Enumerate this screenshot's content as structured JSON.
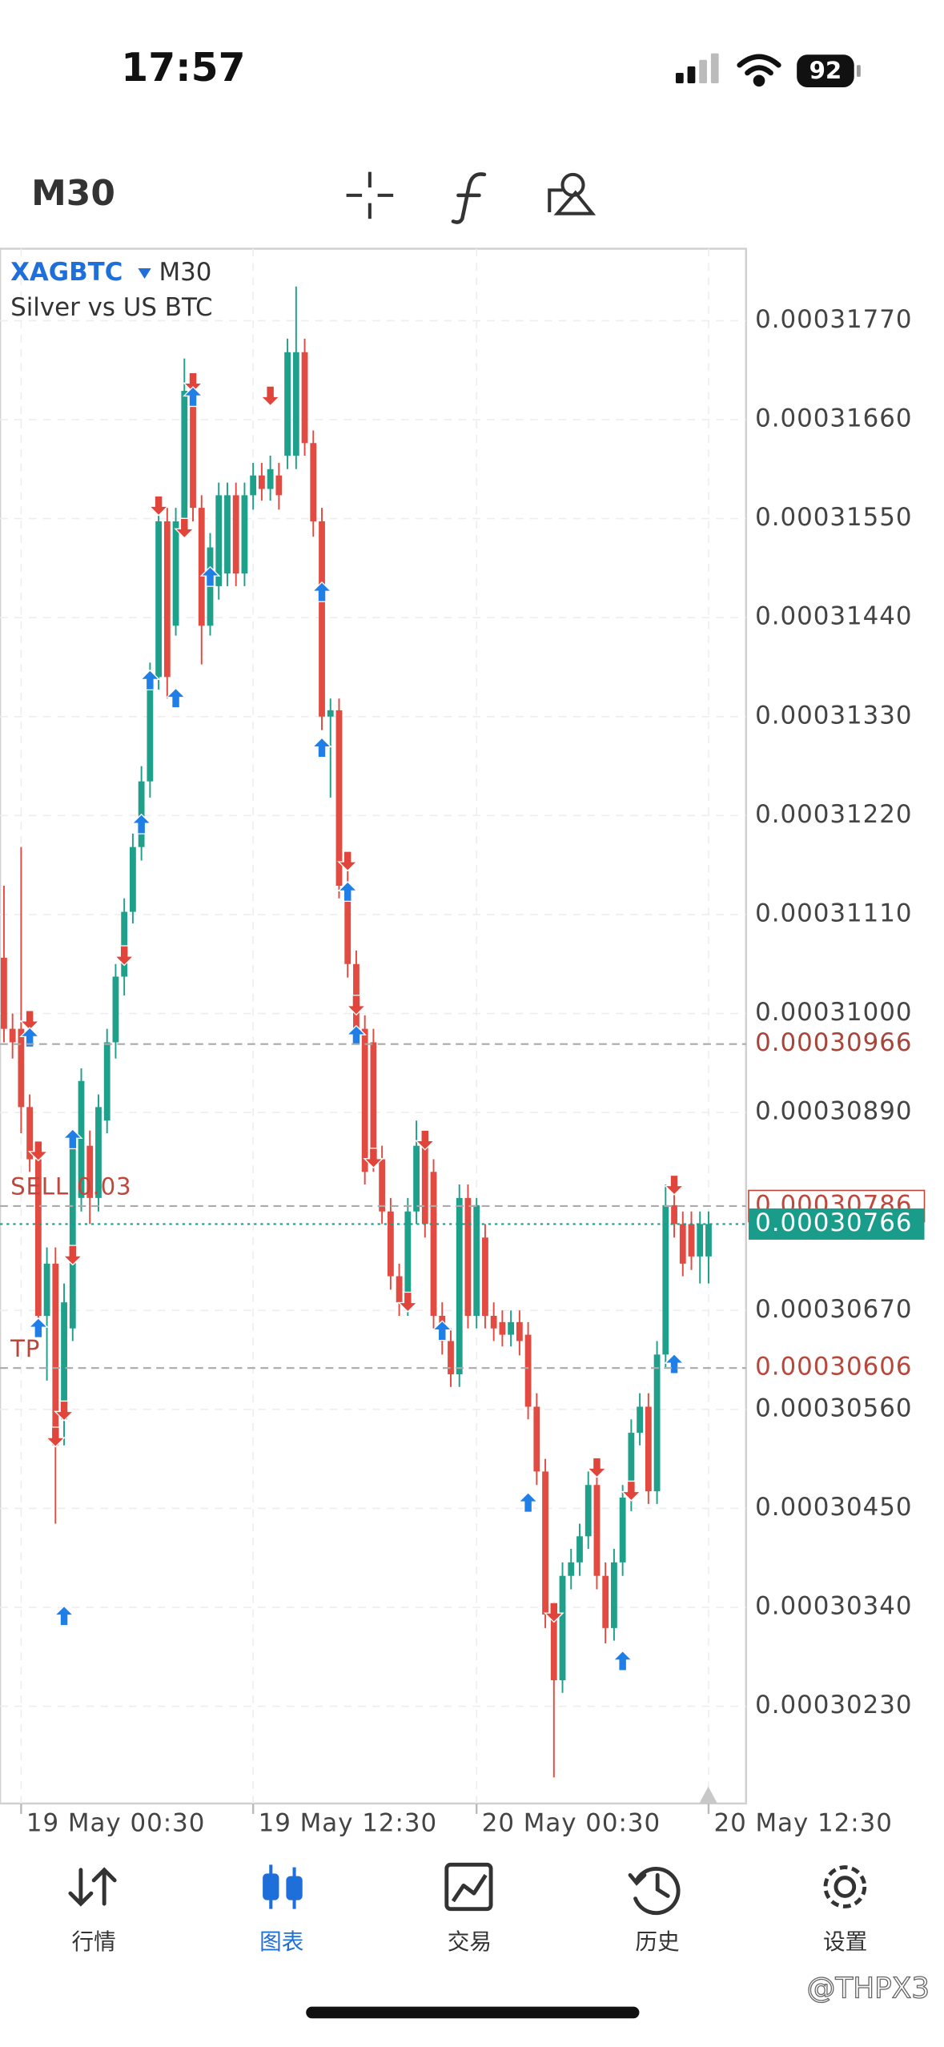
{
  "status_bar": {
    "time": "17:57",
    "battery": "92"
  },
  "toolbar": {
    "timeframe": "M30"
  },
  "chart_data": {
    "type": "candlestick",
    "symbol": "XAGBTC",
    "timeframe": "M30",
    "description": "Silver vs US BTC",
    "up_color": "#1fa08b",
    "down_color": "#e24b41",
    "open": [
      0.00031062,
      0.00030983,
      0.00030983,
      0.00030896,
      0.00030838,
      0.00030664,
      0.00030722,
      0.00030549,
      0.0003065,
      0.00030795,
      0.00030853,
      0.00030795,
      0.00030881,
      0.00030968,
      0.00031041,
      0.00031113,
      0.00031185,
      0.00031258,
      0.00031374,
      0.00031547,
      0.00031431,
      0.00031547,
      0.00031692,
      0.00031562,
      0.00031431,
      0.00031475,
      0.00031489,
      0.00031576,
      0.00031489,
      0.00031576,
      0.00031598,
      0.00031583,
      0.00031598,
      0.0003162,
      0.0003162,
      0.00031735,
      0.00031634,
      0.00031547,
      0.0003133,
      0.00031337,
      0.00031142,
      0.00031055,
      0.00030983,
      0.00030968,
      0.00030838,
      0.0003078,
      0.00030708,
      0.00030679,
      0.0003078,
      0.00030853,
      0.00030824,
      0.00030664,
      0.00030636,
      0.00030599,
      0.00030795,
      0.00030664,
      0.00030751,
      0.00030664,
      0.00030657,
      0.00030643,
      0.00030657,
      0.00030643,
      0.00030563,
      0.00030491,
      0.00030332,
      0.00030259,
      0.00030375,
      0.0003039,
      0.00030419,
      0.00030476,
      0.00030375,
      0.00030317,
      0.0003039,
      0.00030462,
      0.00030534,
      0.00030563,
      0.00030469,
      0.00030621,
      0.00030787,
      0.00030766,
      0.00030766,
      0.0003073,
      0.0003073
    ],
    "high": [
      0.00031142,
      0.00031,
      0.00031185,
      0.0003091,
      0.00030853,
      0.0003074,
      0.0003074,
      0.000307,
      0.0003087,
      0.00030939,
      0.0003087,
      0.0003091,
      0.00030983,
      0.00031055,
      0.00031128,
      0.000312,
      0.00031275,
      0.0003139,
      0.00031562,
      0.00031562,
      0.00031562,
      0.00031728,
      0.0003171,
      0.00031576,
      0.00031534,
      0.0003159,
      0.0003159,
      0.0003159,
      0.0003159,
      0.00031612,
      0.00031612,
      0.0003162,
      0.00031612,
      0.0003175,
      0.00031808,
      0.0003175,
      0.00031648,
      0.00031562,
      0.0003135,
      0.0003135,
      0.0003116,
      0.0003107,
      0.00030998,
      0.00030983,
      0.00030853,
      0.00030795,
      0.00030722,
      0.00030795,
      0.00030881,
      0.00030867,
      0.00030838,
      0.00030679,
      0.0003065,
      0.0003081,
      0.0003081,
      0.00030795,
      0.00030766,
      0.00030679,
      0.0003067,
      0.0003067,
      0.0003067,
      0.00030657,
      0.00030578,
      0.00030505,
      0.00030346,
      0.0003039,
      0.00030405,
      0.00030433,
      0.00030491,
      0.00030491,
      0.0003039,
      0.00030405,
      0.00030476,
      0.00030549,
      0.00030578,
      0.00030578,
      0.00030636,
      0.0003081,
      0.000308,
      0.0003078,
      0.0003078,
      0.0003078,
      0.0003078
    ],
    "low": [
      0.00030968,
      0.0003095,
      0.00030867,
      0.00030824,
      0.0003065,
      0.00030592,
      0.00030433,
      0.0003052,
      0.00030636,
      0.0003078,
      0.00030766,
      0.0003078,
      0.00030867,
      0.0003095,
      0.0003102,
      0.000311,
      0.0003117,
      0.0003124,
      0.0003136,
      0.0003135,
      0.0003142,
      0.0003153,
      0.00031547,
      0.00031388,
      0.0003142,
      0.0003146,
      0.00031475,
      0.00031475,
      0.00031475,
      0.0003156,
      0.0003157,
      0.0003157,
      0.0003156,
      0.00031605,
      0.00031605,
      0.0003162,
      0.0003153,
      0.00031315,
      0.0003124,
      0.00031128,
      0.0003104,
      0.00030968,
      0.0003081,
      0.00030824,
      0.00030766,
      0.00030693,
      0.00030664,
      0.00030664,
      0.00030766,
      0.00030751,
      0.0003065,
      0.00030621,
      0.00030585,
      0.00030585,
      0.0003065,
      0.0003065,
      0.0003065,
      0.00030636,
      0.0003063,
      0.0003063,
      0.0003062,
      0.00030549,
      0.00030476,
      0.00030317,
      0.00030151,
      0.00030245,
      0.0003036,
      0.00030375,
      0.00030405,
      0.0003036,
      0.000303,
      0.00030303,
      0.00030375,
      0.00030447,
      0.0003052,
      0.00030455,
      0.00030455,
      0.00030607,
      0.00030751,
      0.00030708,
      0.00030715,
      0.000307,
      0.000307
    ],
    "close": [
      0.00030983,
      0.00030968,
      0.00030896,
      0.00030838,
      0.00030664,
      0.00030722,
      0.0003052,
      0.00030679,
      0.00030853,
      0.00030925,
      0.00030795,
      0.00030896,
      0.00030968,
      0.00031041,
      0.00031113,
      0.00031185,
      0.00031258,
      0.00031374,
      0.00031547,
      0.00031374,
      0.00031547,
      0.00031692,
      0.00031562,
      0.00031431,
      0.00031518,
      0.00031576,
      0.00031576,
      0.00031489,
      0.00031576,
      0.00031598,
      0.00031583,
      0.00031605,
      0.00031576,
      0.00031735,
      0.00031735,
      0.00031634,
      0.00031547,
      0.0003133,
      0.00031337,
      0.00031142,
      0.00031055,
      0.00030983,
      0.00030824,
      0.00030838,
      0.0003078,
      0.00030708,
      0.00030679,
      0.0003078,
      0.00030853,
      0.00030766,
      0.00030664,
      0.00030636,
      0.00030599,
      0.00030795,
      0.00030664,
      0.00030787,
      0.00030664,
      0.0003065,
      0.00030643,
      0.00030657,
      0.00030636,
      0.00030563,
      0.00030491,
      0.00030332,
      0.00030259,
      0.00030375,
      0.0003039,
      0.00030419,
      0.00030476,
      0.00030375,
      0.00030317,
      0.0003039,
      0.00030462,
      0.00030534,
      0.00030563,
      0.00030469,
      0.00030621,
      0.00030787,
      0.00030766,
      0.00030722,
      0.0003073,
      0.00030766,
      0.00030766
    ],
    "xlim": [
      -0.45,
      86.36
    ],
    "xticks": [
      {
        "value": 2,
        "label": "19 May 00:30"
      },
      {
        "value": 29,
        "label": "19 May 12:30"
      },
      {
        "value": 55,
        "label": "20 May 00:30"
      },
      {
        "value": 82,
        "label": "20 May 12:30"
      }
    ],
    "ylim": [
      0.00030122,
      0.0003185
    ],
    "yticks": [
      {
        "value": 0.0003177,
        "label": "0.00031770"
      },
      {
        "value": 0.0003166,
        "label": "0.00031660"
      },
      {
        "value": 0.0003155,
        "label": "0.00031550"
      },
      {
        "value": 0.0003144,
        "label": "0.00031440"
      },
      {
        "value": 0.0003133,
        "label": "0.00031330"
      },
      {
        "value": 0.0003122,
        "label": "0.00031220"
      },
      {
        "value": 0.0003111,
        "label": "0.00031110"
      },
      {
        "value": 0.00031,
        "label": "0.00031000"
      },
      {
        "value": 0.0003089,
        "label": "0.00030890"
      },
      {
        "value": 0.0003067,
        "label": "0.00030670"
      },
      {
        "value": 0.0003056,
        "label": "0.00030560"
      },
      {
        "value": 0.0003045,
        "label": "0.00030450"
      },
      {
        "value": 0.0003034,
        "label": "0.00030340"
      },
      {
        "value": 0.0003023,
        "label": "0.00030230"
      }
    ],
    "grid": true,
    "levels": [
      {
        "value": 0.00030966,
        "label": "0.00030966",
        "color": "#a8453a",
        "line": "dashed",
        "box": "none"
      },
      {
        "name": "SELL 0.03",
        "value": 0.00030786,
        "label": "0.00030786",
        "color": "#c0473c",
        "line": "dashed",
        "box": "outline"
      },
      {
        "name": "TP",
        "value": 0.00030606,
        "label": "0.00030606",
        "color": "#b8473c",
        "line": "dashed",
        "box": "none"
      },
      {
        "value": 0.00030766,
        "label": "0.00030766",
        "color": "#1a9c8a",
        "line": "dotted",
        "box": "filled"
      }
    ],
    "marker_colors": {
      "up": "#1f7fe6",
      "down": "#e0443a"
    },
    "markers": [
      {
        "direction": "down",
        "index": 3,
        "price": 0.00030983
      },
      {
        "direction": "down",
        "index": 4,
        "price": 0.00030838
      },
      {
        "direction": "down",
        "index": 6,
        "price": 0.0003052
      },
      {
        "direction": "down",
        "index": 7,
        "price": 0.00030549
      },
      {
        "direction": "down",
        "index": 8,
        "price": 0.00030722
      },
      {
        "direction": "down",
        "index": 14,
        "price": 0.00031055
      },
      {
        "direction": "down",
        "index": 18,
        "price": 0.00031555
      },
      {
        "direction": "down",
        "index": 21,
        "price": 0.0003153
      },
      {
        "direction": "down",
        "index": 22,
        "price": 0.00031692
      },
      {
        "direction": "down",
        "index": 31,
        "price": 0.00031677
      },
      {
        "direction": "down",
        "index": 40,
        "price": 0.0003116
      },
      {
        "direction": "down",
        "index": 41,
        "price": 0.00031
      },
      {
        "direction": "down",
        "index": 43,
        "price": 0.0003083
      },
      {
        "direction": "down",
        "index": 47,
        "price": 0.0003067
      },
      {
        "direction": "down",
        "index": 49,
        "price": 0.0003085
      },
      {
        "direction": "down",
        "index": 64,
        "price": 0.00030325
      },
      {
        "direction": "down",
        "index": 69,
        "price": 0.00030486
      },
      {
        "direction": "down",
        "index": 73,
        "price": 0.0003046
      },
      {
        "direction": "down",
        "index": 78,
        "price": 0.000308
      },
      {
        "direction": "up",
        "index": 3,
        "price": 0.00030983
      },
      {
        "direction": "up",
        "index": 4,
        "price": 0.0003066
      },
      {
        "direction": "up",
        "index": 7,
        "price": 0.0003034
      },
      {
        "direction": "up",
        "index": 8,
        "price": 0.0003087
      },
      {
        "direction": "up",
        "index": 16,
        "price": 0.0003122
      },
      {
        "direction": "up",
        "index": 17,
        "price": 0.0003138
      },
      {
        "direction": "up",
        "index": 20,
        "price": 0.0003136
      },
      {
        "direction": "up",
        "index": 22,
        "price": 0.00031695
      },
      {
        "direction": "up",
        "index": 24,
        "price": 0.00031495
      },
      {
        "direction": "up",
        "index": 37,
        "price": 0.00031478
      },
      {
        "direction": "up",
        "index": 37,
        "price": 0.00031305
      },
      {
        "direction": "up",
        "index": 40,
        "price": 0.00031145
      },
      {
        "direction": "up",
        "index": 41,
        "price": 0.00030985
      },
      {
        "direction": "up",
        "index": 51,
        "price": 0.00030657
      },
      {
        "direction": "up",
        "index": 61,
        "price": 0.00030466
      },
      {
        "direction": "up",
        "index": 72,
        "price": 0.0003029
      },
      {
        "direction": "up",
        "index": 78,
        "price": 0.0003062
      }
    ]
  },
  "nav": {
    "items": [
      "行情",
      "图表",
      "交易",
      "历史",
      "设置"
    ],
    "active": 1,
    "active_color": "#1e6fd9",
    "color": "#333333"
  },
  "watermark": "@THPX3"
}
